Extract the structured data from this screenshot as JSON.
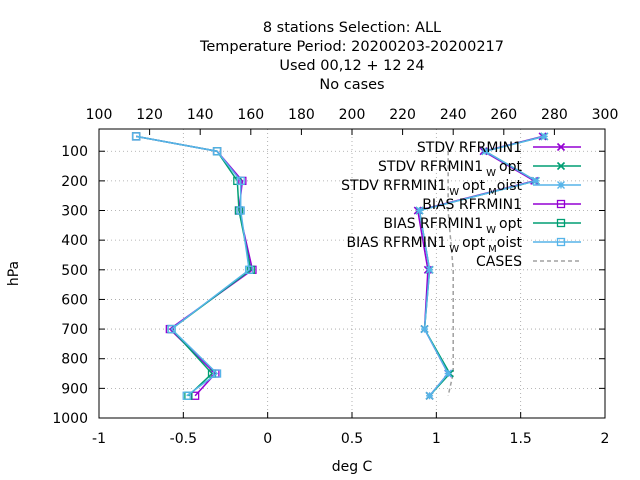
{
  "chart_data": {
    "type": "line",
    "title_lines": [
      "8 stations Selection: ALL",
      "Temperature  Period: 20200203-20200217",
      "Used  00,12  + 12 24",
      "No cases"
    ],
    "xlabel": "deg C",
    "ylabel": "hPa",
    "x_bottom": {
      "range": [
        -1,
        2
      ],
      "ticks": [
        -1,
        -0.5,
        0,
        0.5,
        1,
        1.5,
        2
      ],
      "tick_labels": [
        "-1",
        "-0.5",
        "0",
        "0.5",
        "1",
        "1.5",
        "2"
      ]
    },
    "x_top": {
      "range": [
        100,
        300
      ],
      "ticks": [
        100,
        120,
        140,
        160,
        180,
        200,
        220,
        240,
        260,
        280,
        300
      ],
      "tick_labels": [
        "100",
        "120",
        "140",
        "160",
        "180",
        "200",
        "220",
        "240",
        "260",
        "280",
        "300"
      ]
    },
    "y": {
      "range": [
        1000,
        25
      ],
      "ticks": [
        100,
        200,
        300,
        400,
        500,
        600,
        700,
        800,
        900,
        1000
      ],
      "tick_labels": [
        "100",
        "200",
        "300",
        "400",
        "500",
        "600",
        "700",
        "800",
        "900",
        "1000"
      ]
    },
    "grid": true,
    "legend_position": "top-right",
    "pressure_levels": [
      50,
      100,
      200,
      300,
      500,
      700,
      850,
      925
    ],
    "series": [
      {
        "name": "STDV RFRMIN1",
        "name_sub": "",
        "name_tail": "",
        "kind": "stdv",
        "color": "#9400d3",
        "marker": "cross",
        "values": [
          1.63,
          1.28,
          1.58,
          0.89,
          0.95,
          0.93,
          1.07,
          0.96
        ]
      },
      {
        "name": "STDV RFRMIN1",
        "name_sub": "W",
        "name_tail": "opt",
        "kind": "stdv",
        "color": "#009e73",
        "marker": "cross",
        "values": [
          1.64,
          1.29,
          1.59,
          0.9,
          0.96,
          0.93,
          1.08,
          0.96
        ]
      },
      {
        "name": "STDV RFRMIN1",
        "name_sub": "W",
        "name_tail": "opt",
        "name_sub2": "M",
        "name_tail2": "oist",
        "kind": "stdv",
        "color": "#56b4e9",
        "marker": "star",
        "values": [
          1.64,
          1.29,
          1.59,
          0.9,
          0.96,
          0.93,
          1.07,
          0.96
        ]
      },
      {
        "name": "BIAS RFRMIN1",
        "name_sub": "",
        "name_tail": "",
        "kind": "bias",
        "color": "#9400d3",
        "marker": "square",
        "values": [
          -0.78,
          -0.3,
          -0.15,
          -0.17,
          -0.09,
          -0.58,
          -0.31,
          -0.43
        ]
      },
      {
        "name": "BIAS RFRMIN1",
        "name_sub": "W",
        "name_tail": "opt",
        "kind": "bias",
        "color": "#009e73",
        "marker": "square",
        "values": [
          -0.78,
          -0.3,
          -0.18,
          -0.17,
          -0.1,
          -0.57,
          -0.33,
          -0.47
        ]
      },
      {
        "name": "BIAS RFRMIN1",
        "name_sub": "W",
        "name_tail": "opt",
        "name_sub2": "M",
        "name_tail2": "oist",
        "kind": "bias",
        "color": "#56b4e9",
        "marker": "square",
        "values": [
          -0.78,
          -0.3,
          -0.16,
          -0.16,
          -0.11,
          -0.57,
          -0.3,
          -0.48
        ]
      }
    ],
    "cases": {
      "name": "CASES",
      "color": "#a0a0a0",
      "values": [
        null,
        238,
        238,
        238,
        240,
        240,
        240,
        238
      ]
    }
  }
}
